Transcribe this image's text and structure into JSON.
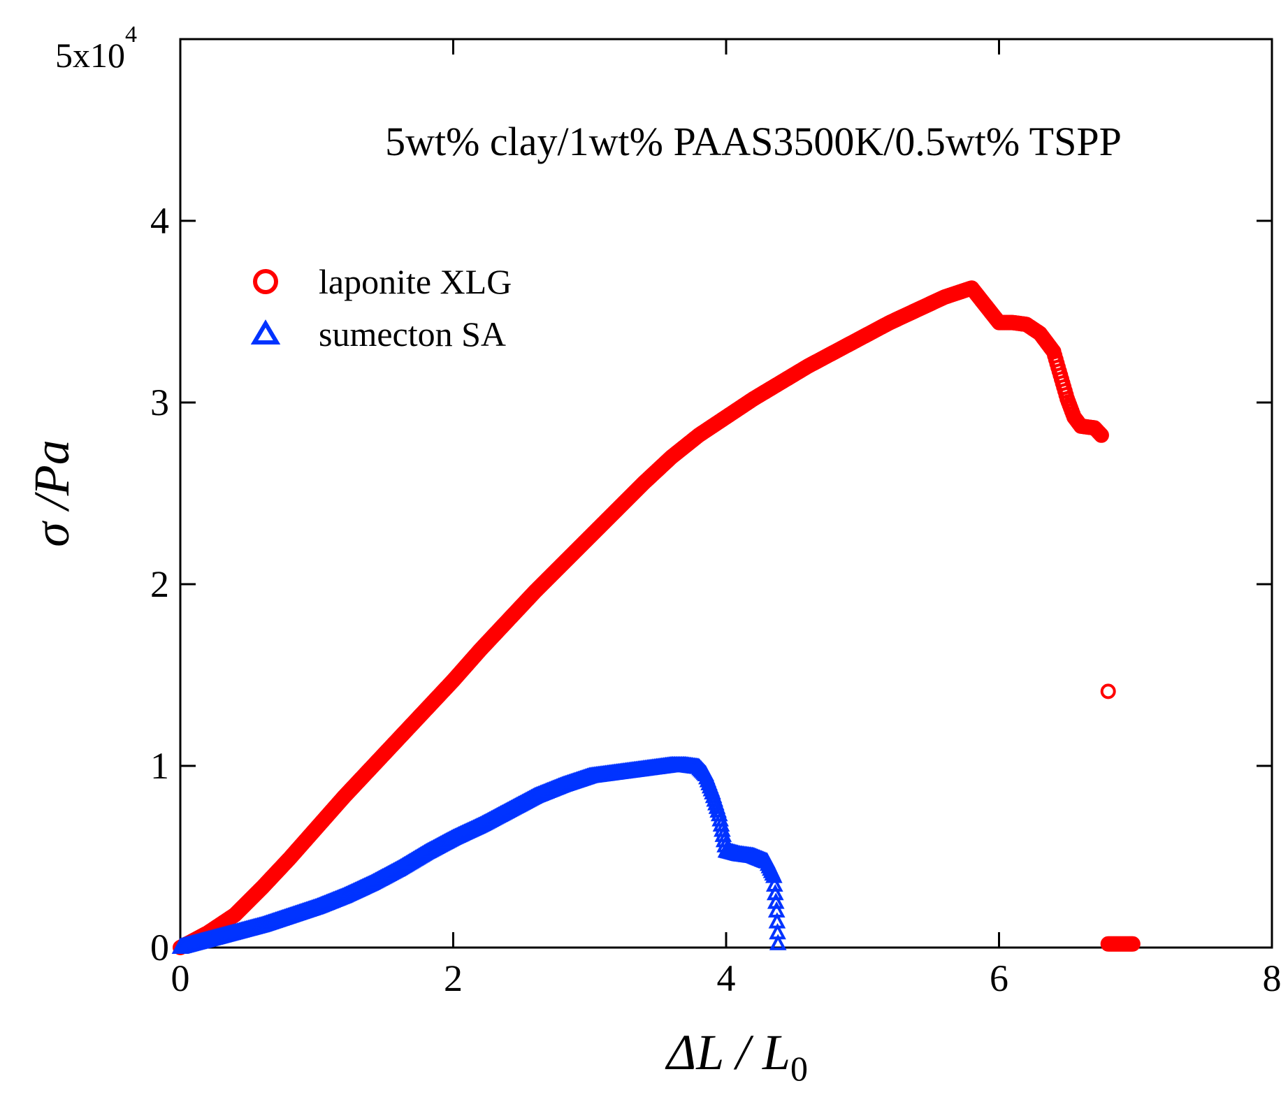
{
  "chart_data": {
    "type": "scatter",
    "title": "5wt% clay/1wt% PAAS3500K/0.5wt% TSPP",
    "xlabel": {
      "main": "ΔL / L",
      "sub": "0"
    },
    "ylabel": "σ /Pa",
    "xlim": [
      0,
      8
    ],
    "ylim": [
      0,
      50000
    ],
    "x_ticks": [
      0,
      2,
      4,
      6,
      8
    ],
    "x_tick_labels": [
      "0",
      "2",
      "4",
      "6",
      "8"
    ],
    "y_ticks": [
      0,
      10000,
      20000,
      30000,
      40000,
      50000
    ],
    "y_tick_labels": [
      "0",
      "1",
      "2",
      "3",
      "4",
      ""
    ],
    "y_scale_label": {
      "base": "5x10",
      "exp": "4"
    },
    "legend_position": "upper-left",
    "grid": false,
    "series": [
      {
        "name": "laponite XLG",
        "marker": "circle",
        "color": "#ff0000",
        "x": [
          0.0,
          0.2,
          0.4,
          0.6,
          0.8,
          1.0,
          1.2,
          1.4,
          1.6,
          1.8,
          2.0,
          2.2,
          2.4,
          2.6,
          2.8,
          3.0,
          3.2,
          3.4,
          3.6,
          3.8,
          4.0,
          4.2,
          4.4,
          4.6,
          4.8,
          5.0,
          5.2,
          5.4,
          5.6,
          5.8,
          6.0,
          6.1,
          6.2,
          6.3,
          6.4,
          6.45,
          6.5,
          6.55,
          6.6,
          6.7,
          6.75,
          6.8,
          6.8,
          6.85,
          6.9,
          6.95,
          6.98
        ],
        "y": [
          0,
          800,
          1800,
          3300,
          4900,
          6600,
          8300,
          9900,
          11500,
          13100,
          14700,
          16400,
          18000,
          19600,
          21100,
          22600,
          24100,
          25600,
          27000,
          28200,
          29200,
          30200,
          31100,
          32000,
          32800,
          33600,
          34400,
          35100,
          35800,
          36300,
          34400,
          34400,
          34300,
          33800,
          32800,
          31500,
          30200,
          29200,
          28700,
          28600,
          28200,
          14100,
          200,
          200,
          200,
          200,
          200
        ]
      },
      {
        "name": "sumecton SA",
        "marker": "triangle",
        "color": "#0033ff",
        "x": [
          0.0,
          0.2,
          0.4,
          0.6,
          0.8,
          1.0,
          1.2,
          1.4,
          1.6,
          1.8,
          2.0,
          2.2,
          2.4,
          2.6,
          2.8,
          3.0,
          3.2,
          3.4,
          3.6,
          3.7,
          3.8,
          3.85,
          3.9,
          3.95,
          4.0,
          4.1,
          4.2,
          4.3,
          4.35,
          4.37,
          4.38
        ],
        "y": [
          0,
          400,
          800,
          1200,
          1700,
          2200,
          2800,
          3500,
          4300,
          5200,
          6000,
          6700,
          7500,
          8300,
          8900,
          9400,
          9600,
          9800,
          10000,
          10000,
          9900,
          9500,
          8500,
          7300,
          5300,
          5100,
          5000,
          4700,
          3900,
          2000,
          200
        ]
      }
    ]
  }
}
